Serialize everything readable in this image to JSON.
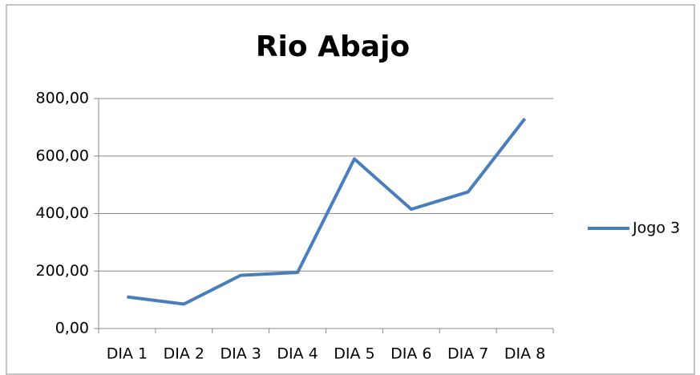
{
  "chart_data": {
    "type": "line",
    "title": "Rio Abajo",
    "categories": [
      "DIA 1",
      "DIA 2",
      "DIA 3",
      "DIA 4",
      "DIA 5",
      "DIA 6",
      "DIA 7",
      "DIA 8"
    ],
    "series": [
      {
        "name": "Jogo 3",
        "color": "#4a7ebb",
        "values": [
          110,
          85,
          185,
          195,
          590,
          415,
          475,
          730
        ]
      }
    ],
    "ylim": [
      0,
      800
    ],
    "yticks": [
      {
        "value": 0,
        "label": "0,00"
      },
      {
        "value": 200,
        "label": "200,00"
      },
      {
        "value": 400,
        "label": "400,00"
      },
      {
        "value": 600,
        "label": "600,00"
      },
      {
        "value": 800,
        "label": "800,00"
      }
    ],
    "grid": true,
    "legend": "right"
  }
}
